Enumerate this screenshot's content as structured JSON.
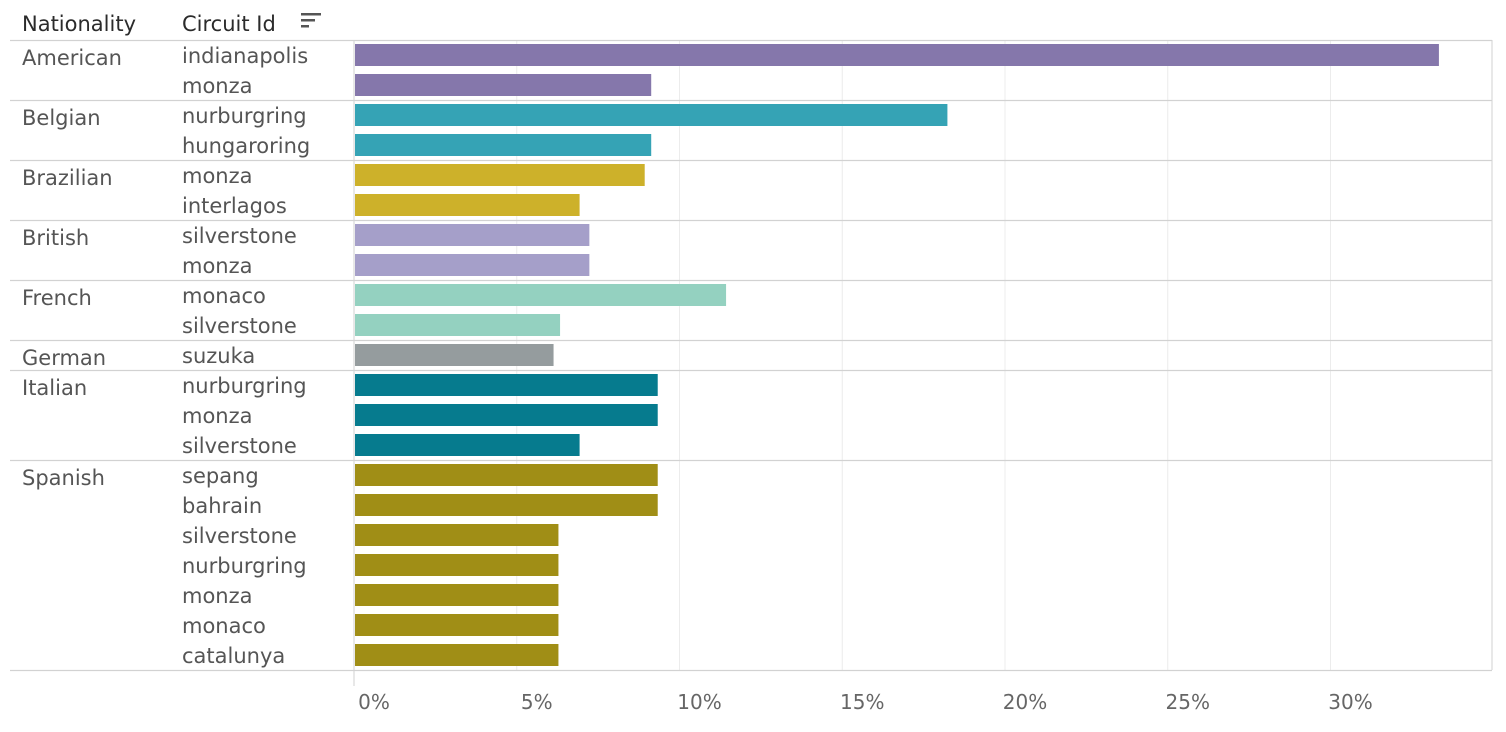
{
  "chart_data": {
    "type": "bar",
    "orientation": "horizontal",
    "headers": {
      "nationality": "Nationality",
      "circuit": "Circuit Id"
    },
    "x_ticks": [
      "0%",
      "5%",
      "10%",
      "15%",
      "20%",
      "25%",
      "30%"
    ],
    "xlim": [
      0,
      34
    ],
    "groups": [
      {
        "nationality": "American",
        "color": "#8577ab",
        "rows": [
          {
            "circuit": "indianapolis",
            "value": 33.3
          },
          {
            "circuit": "monza",
            "value": 9.1
          }
        ]
      },
      {
        "nationality": "Belgian",
        "color": "#35a3b5",
        "rows": [
          {
            "circuit": "nurburgring",
            "value": 18.2
          },
          {
            "circuit": "hungaroring",
            "value": 9.1
          }
        ]
      },
      {
        "nationality": "Brazilian",
        "color": "#cdb12a",
        "rows": [
          {
            "circuit": "monza",
            "value": 8.9
          },
          {
            "circuit": "interlagos",
            "value": 6.9
          }
        ]
      },
      {
        "nationality": "British",
        "color": "#a59fc9",
        "rows": [
          {
            "circuit": "silverstone",
            "value": 7.2
          },
          {
            "circuit": "monza",
            "value": 7.2
          }
        ]
      },
      {
        "nationality": "French",
        "color": "#94d1c0",
        "rows": [
          {
            "circuit": "monaco",
            "value": 11.4
          },
          {
            "circuit": "silverstone",
            "value": 6.3
          }
        ]
      },
      {
        "nationality": "German",
        "color": "#959c9e",
        "rows": [
          {
            "circuit": "suzuka",
            "value": 6.1
          }
        ]
      },
      {
        "nationality": "Italian",
        "color": "#067b8e",
        "rows": [
          {
            "circuit": "nurburgring",
            "value": 9.3
          },
          {
            "circuit": "monza",
            "value": 9.3
          },
          {
            "circuit": "silverstone",
            "value": 6.9
          }
        ]
      },
      {
        "nationality": "Spanish",
        "color": "#a08e16",
        "rows": [
          {
            "circuit": "sepang",
            "value": 9.3
          },
          {
            "circuit": "bahrain",
            "value": 9.3
          },
          {
            "circuit": "silverstone",
            "value": 6.25
          },
          {
            "circuit": "nurburgring",
            "value": 6.25
          },
          {
            "circuit": "monza",
            "value": 6.25
          },
          {
            "circuit": "monaco",
            "value": 6.25
          },
          {
            "circuit": "catalunya",
            "value": 6.25
          }
        ]
      }
    ]
  }
}
